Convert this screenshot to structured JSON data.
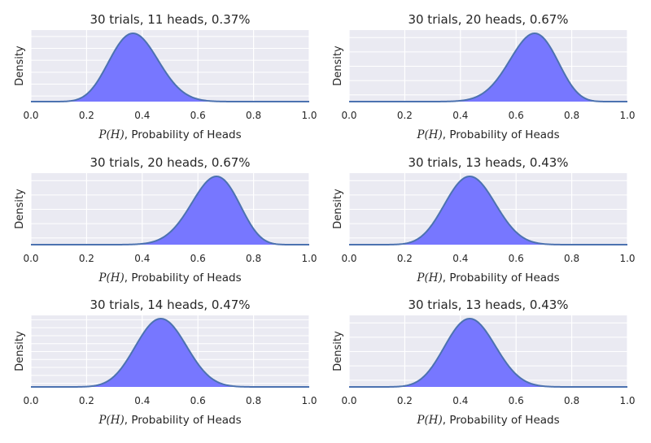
{
  "chart_data": [
    {
      "type": "area",
      "title": "30 trials, 11 heads, 0.37%",
      "trials": 30,
      "heads": 11,
      "xlabel": "P(H), Probability of Heads",
      "ylabel": "Density",
      "xlim": [
        0.0,
        1.0
      ],
      "xticks": [
        "0.0",
        "0.2",
        "0.4",
        "0.6",
        "0.8",
        "1.0"
      ],
      "y_gridlines": 6,
      "color": "#7777ff",
      "line_color": "#4c72b0"
    },
    {
      "type": "area",
      "title": "30 trials, 20 heads, 0.67%",
      "trials": 30,
      "heads": 20,
      "xlabel": "P(H), Probability of Heads",
      "ylabel": "Density",
      "xlim": [
        0.0,
        1.0
      ],
      "xticks": [
        "0.0",
        "0.2",
        "0.4",
        "0.6",
        "0.8",
        "1.0"
      ],
      "y_gridlines": 5,
      "color": "#7777ff",
      "line_color": "#4c72b0"
    },
    {
      "type": "area",
      "title": "30 trials, 20 heads, 0.67%",
      "trials": 30,
      "heads": 20,
      "xlabel": "P(H), Probability of Heads",
      "ylabel": "Density",
      "xlim": [
        0.0,
        1.0
      ],
      "xticks": [
        "0.0",
        "0.2",
        "0.4",
        "0.6",
        "0.8",
        "1.0"
      ],
      "y_gridlines": 5,
      "color": "#7777ff",
      "line_color": "#4c72b0"
    },
    {
      "type": "area",
      "title": "30 trials, 13 heads, 0.43%",
      "trials": 30,
      "heads": 13,
      "xlabel": "P(H), Probability of Heads",
      "ylabel": "Density",
      "xlim": [
        0.0,
        1.0
      ],
      "xticks": [
        "0.0",
        "0.2",
        "0.4",
        "0.6",
        "0.8",
        "1.0"
      ],
      "y_gridlines": 5,
      "color": "#7777ff",
      "line_color": "#4c72b0"
    },
    {
      "type": "area",
      "title": "30 trials, 14 heads, 0.47%",
      "trials": 30,
      "heads": 14,
      "xlabel": "P(H), Probability of Heads",
      "ylabel": "Density",
      "xlim": [
        0.0,
        1.0
      ],
      "xticks": [
        "0.0",
        "0.2",
        "0.4",
        "0.6",
        "0.8",
        "1.0"
      ],
      "y_gridlines": 9,
      "color": "#7777ff",
      "line_color": "#4c72b0"
    },
    {
      "type": "area",
      "title": "30 trials, 13 heads, 0.43%",
      "trials": 30,
      "heads": 13,
      "xlabel": "P(H), Probability of Heads",
      "ylabel": "Density",
      "xlim": [
        0.0,
        1.0
      ],
      "xticks": [
        "0.0",
        "0.2",
        "0.4",
        "0.6",
        "0.8",
        "1.0"
      ],
      "y_gridlines": 5,
      "color": "#7777ff",
      "line_color": "#4c72b0"
    }
  ]
}
